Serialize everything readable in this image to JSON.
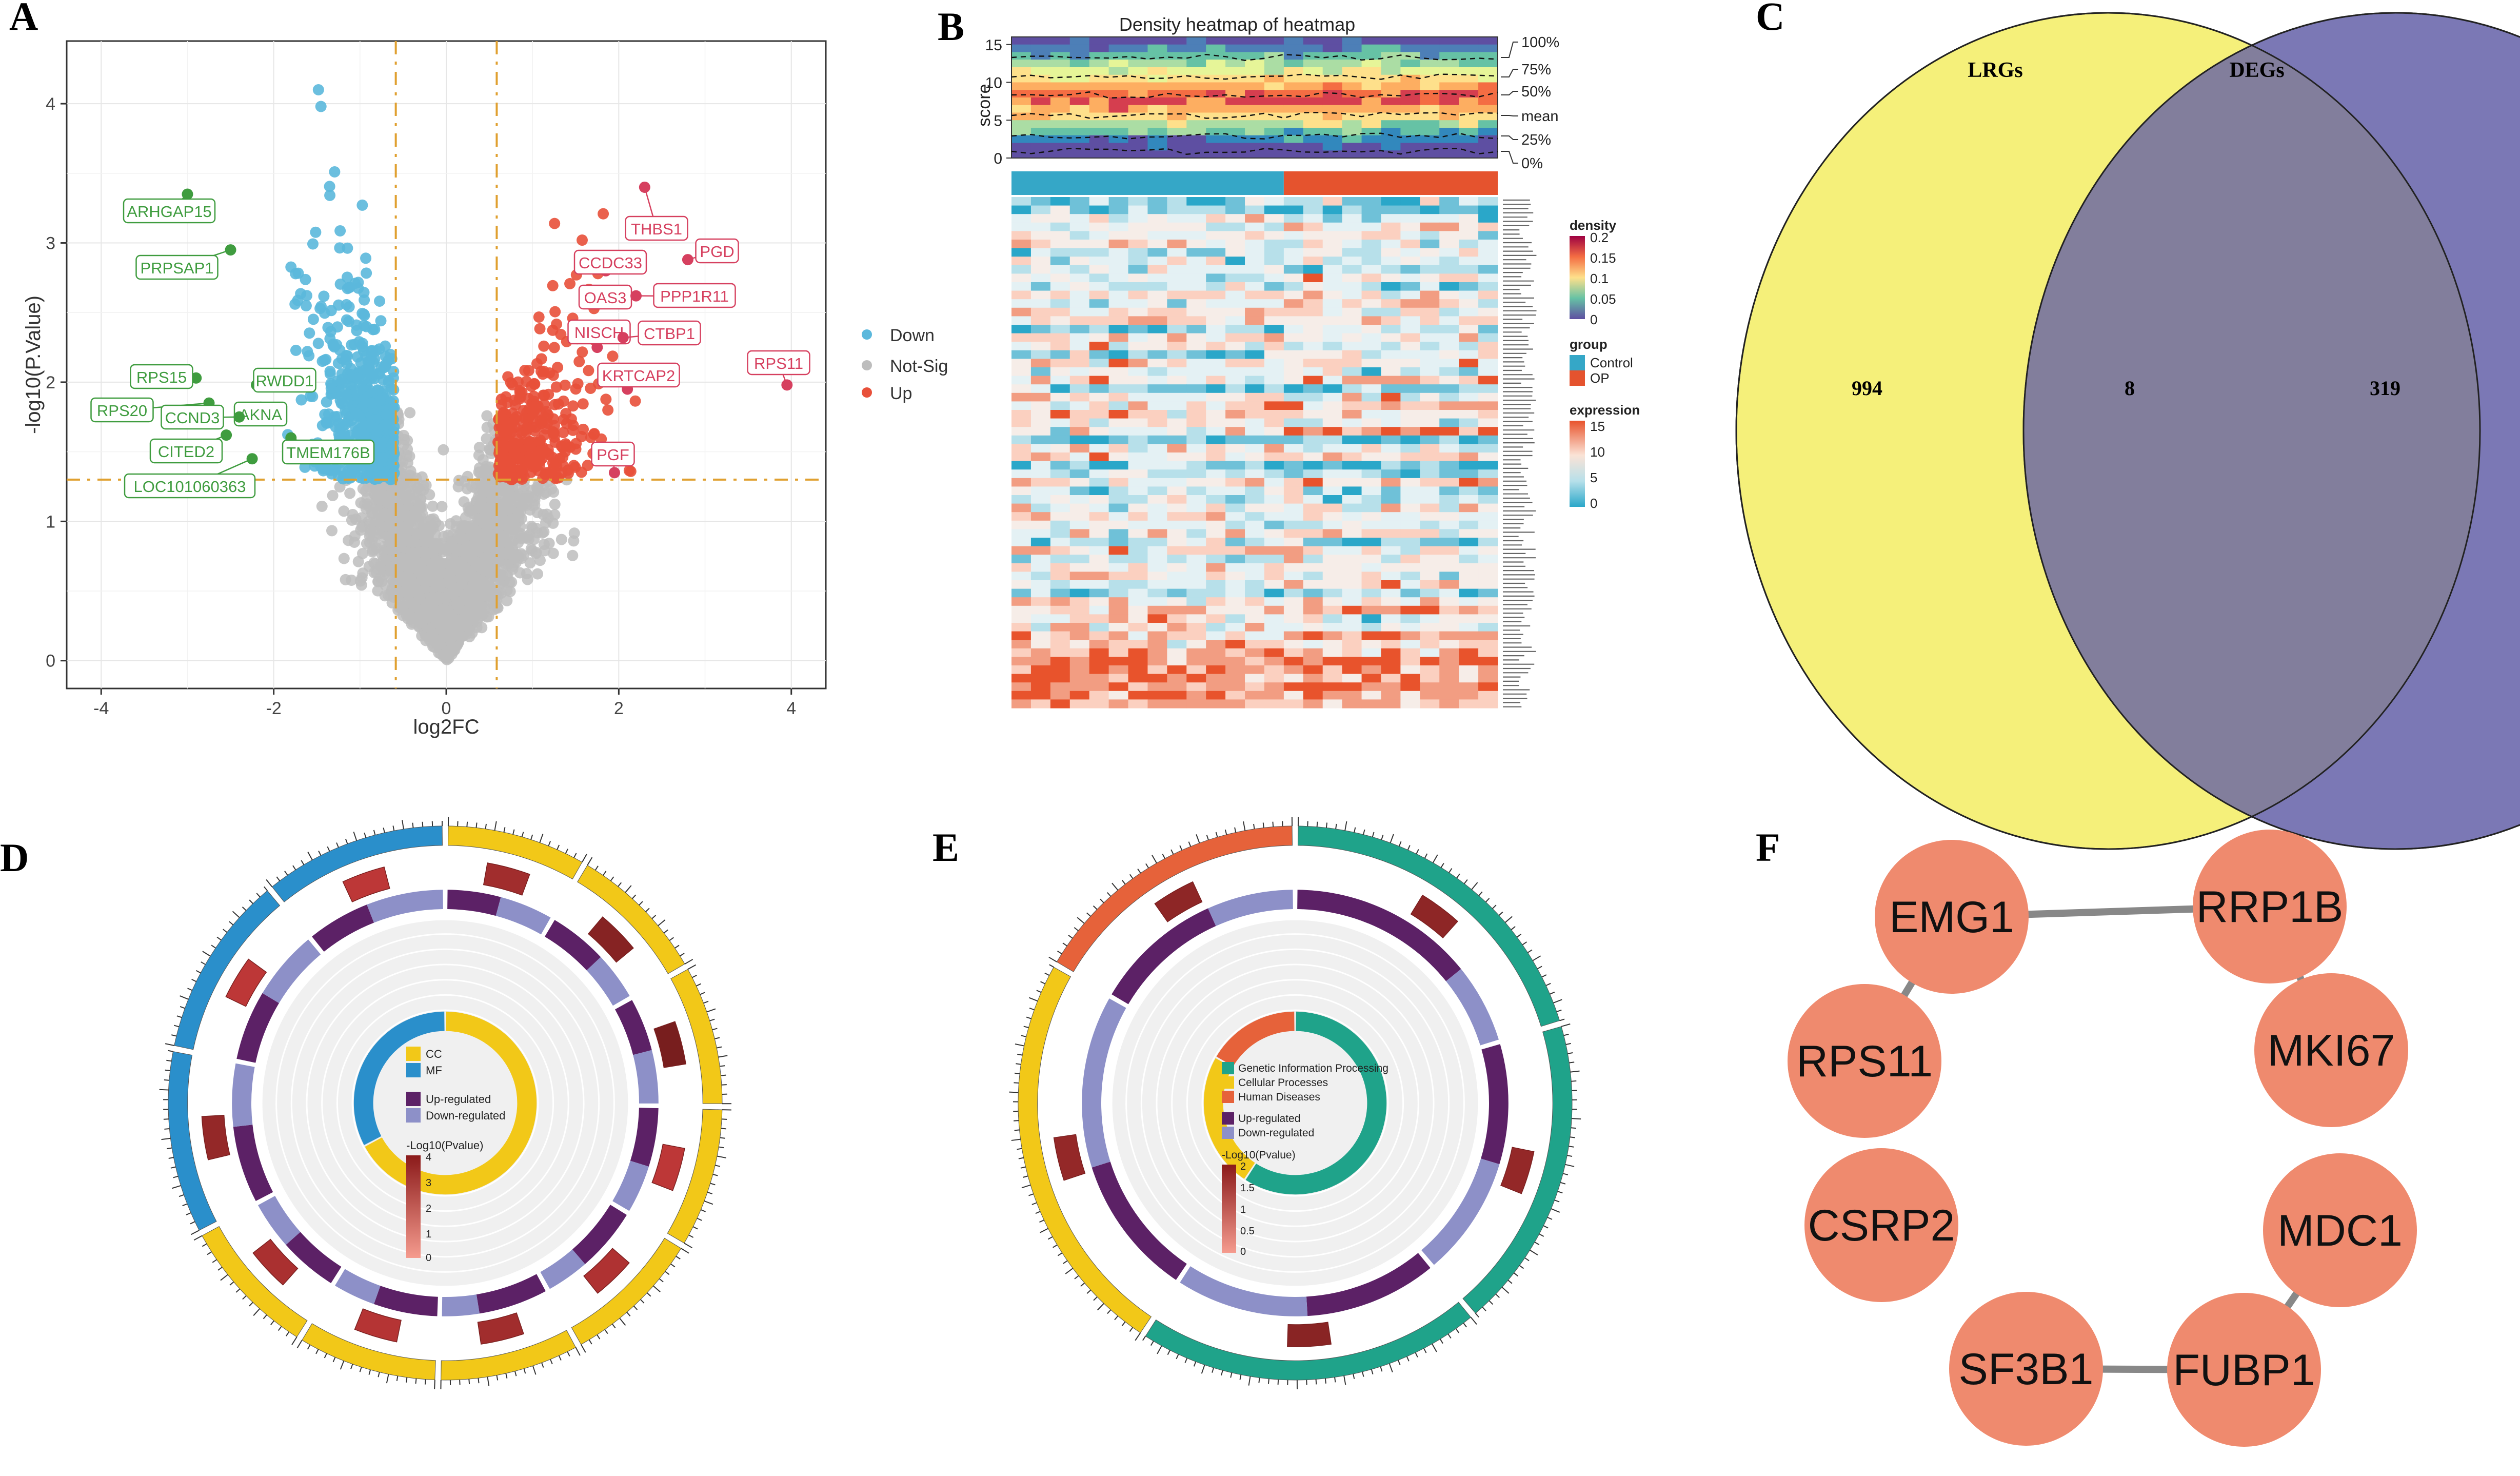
{
  "panels": {
    "A": "A",
    "B": "B",
    "C": "C",
    "D": "D",
    "E": "E",
    "F": "F"
  },
  "colors": {
    "down": "#5bb8dc",
    "notsig": "#bdbdbd",
    "up": "#e8503a",
    "threshold": "#e0a030",
    "venn_left": "#f5f07a",
    "venn_right": "#7b78b5",
    "cc": "#f2c818",
    "mf": "#2a8fcb",
    "up_reg": "#5c2166",
    "down_reg": "#8d90c8",
    "gip": "#1fa38a",
    "cp": "#f2c818",
    "hd": "#e6623a",
    "node": "#ef8a6e",
    "edge": "#888888"
  },
  "chart_data": [
    {
      "type": "scatter",
      "title": "",
      "xlabel": "log2FC",
      "ylabel": "-log10(P.Value)",
      "xlim": [
        -4.4,
        4.4
      ],
      "ylim": [
        -0.2,
        4.45
      ],
      "xticks": [
        "-4",
        "-2",
        "0",
        "2",
        "4"
      ],
      "xtick_values": [
        -4,
        -2,
        0,
        2,
        4
      ],
      "yticks": [
        "0",
        "1",
        "2",
        "3",
        "4"
      ],
      "ytick_values": [
        0,
        1,
        2,
        3,
        4
      ],
      "thresholds": {
        "x": [
          -0.585,
          0.585
        ],
        "y": 1.3
      },
      "legend": [
        "Down",
        "Not-Sig",
        "Up"
      ],
      "legend_position": "right",
      "labeled_down": [
        {
          "gene": "ARHGAP15",
          "x": -3.0,
          "y": 3.35
        },
        {
          "gene": "PRPSAP1",
          "x": -2.5,
          "y": 2.95
        },
        {
          "gene": "RPS15",
          "x": -2.9,
          "y": 2.03
        },
        {
          "gene": "RWDD1",
          "x": -2.2,
          "y": 1.98
        },
        {
          "gene": "RPS20",
          "x": -2.75,
          "y": 1.85
        },
        {
          "gene": "AKNA",
          "x": -2.15,
          "y": 1.82
        },
        {
          "gene": "CCND3",
          "x": -2.4,
          "y": 1.75
        },
        {
          "gene": "CITED2",
          "x": -2.55,
          "y": 1.62
        },
        {
          "gene": "TMEM176B",
          "x": -1.8,
          "y": 1.6
        },
        {
          "gene": "LOC101060363",
          "x": -2.25,
          "y": 1.45
        }
      ],
      "labeled_up": [
        {
          "gene": "THBS1",
          "x": 2.3,
          "y": 3.4
        },
        {
          "gene": "PGD",
          "x": 2.8,
          "y": 2.88
        },
        {
          "gene": "CCDC33",
          "x": 1.85,
          "y": 2.8
        },
        {
          "gene": "OAS3",
          "x": 1.8,
          "y": 2.6
        },
        {
          "gene": "PPP1R11",
          "x": 2.2,
          "y": 2.62
        },
        {
          "gene": "NISCH",
          "x": 1.75,
          "y": 2.25
        },
        {
          "gene": "CTBP1",
          "x": 2.05,
          "y": 2.32
        },
        {
          "gene": "RPS11",
          "x": 3.95,
          "y": 1.98
        },
        {
          "gene": "KRTCAP2",
          "x": 2.1,
          "y": 1.95
        },
        {
          "gene": "PGF",
          "x": 1.95,
          "y": 1.35
        }
      ]
    },
    {
      "type": "heatmap",
      "title": "Density heatmap of heatmap",
      "ylabel": "score",
      "yticks": [
        "0",
        "5",
        "10",
        "15"
      ],
      "ytick_values": [
        0,
        5,
        10,
        15
      ],
      "quantile_labels": [
        "100%",
        "75%",
        "50%",
        "mean",
        "25%",
        "0%"
      ],
      "legends": {
        "density": {
          "title": "density",
          "ticks": [
            "0.2",
            "0.15",
            "0.1",
            "0.05",
            "0"
          ]
        },
        "group": {
          "title": "group",
          "items": [
            "Control",
            "OP"
          ]
        },
        "expression": {
          "title": "expression",
          "ticks": [
            "15",
            "10",
            "5",
            "0"
          ]
        }
      },
      "n_samples": {
        "Control": 14,
        "OP": 11
      },
      "n_genes": 60
    },
    {
      "type": "venn",
      "sets": [
        {
          "name": "LRGs",
          "only": 994
        },
        {
          "name": "DEGs",
          "only": 319
        }
      ],
      "intersection": 8
    },
    {
      "type": "pie",
      "subtype": "circos",
      "legend": {
        "categories": [
          "CC",
          "MF"
        ],
        "regulation": [
          "Up-regulated",
          "Down-regulated"
        ],
        "scale_title": "-Log10(Pvalue)",
        "scale_ticks": [
          "4",
          "3",
          "2",
          "1",
          "0"
        ]
      },
      "sectors": [
        {
          "cat": "CC",
          "up": 0.5,
          "down": 0.5,
          "p": 2.5
        },
        {
          "cat": "CC",
          "up": 0.55,
          "down": 0.45,
          "p": 3.5
        },
        {
          "cat": "CC",
          "up": 0.5,
          "down": 0.5,
          "p": 4.0
        },
        {
          "cat": "CC",
          "up": 0.55,
          "down": 0.45,
          "p": 1.5
        },
        {
          "cat": "CC",
          "up": 0.6,
          "down": 0.4,
          "p": 2.0
        },
        {
          "cat": "CC",
          "up": 0.65,
          "down": 0.35,
          "p": 2.5
        },
        {
          "cat": "CC",
          "up": 0.6,
          "down": 0.4,
          "p": 1.8
        },
        {
          "cat": "CC",
          "up": 0.55,
          "down": 0.45,
          "p": 2.2
        },
        {
          "cat": "MF",
          "up": 0.55,
          "down": 0.45,
          "p": 3.0
        },
        {
          "cat": "MF",
          "up": 0.5,
          "down": 0.5,
          "p": 1.5
        },
        {
          "cat": "MF",
          "up": 0.45,
          "down": 0.55,
          "p": 1.5
        }
      ]
    },
    {
      "type": "pie",
      "subtype": "circos",
      "legend": {
        "categories": [
          "Genetic Information Processing",
          "Cellular Processes",
          "Human Diseases"
        ],
        "regulation": [
          "Up-regulated",
          "Down-regulated"
        ],
        "scale_title": "-Log10(Pvalue)",
        "scale_ticks": [
          "2",
          "1.5",
          "1",
          "0.5",
          "0"
        ]
      },
      "sectors": [
        {
          "cat": "Genetic Information Processing",
          "up": 0.7,
          "down": 0.3,
          "p": 1.6
        },
        {
          "cat": "Genetic Information Processing",
          "up": 0.5,
          "down": 0.5,
          "p": 1.5
        },
        {
          "cat": "Genetic Information Processing",
          "up": 0.5,
          "down": 0.5,
          "p": 1.7
        },
        {
          "cat": "Cellular Processes",
          "up": 0.45,
          "down": 0.55,
          "p": 1.5
        },
        {
          "cat": "Human Diseases",
          "up": 0.6,
          "down": 0.4,
          "p": 1.6
        }
      ]
    },
    {
      "type": "network",
      "nodes": [
        "EMG1",
        "RRP1B",
        "RPS11",
        "MKI67",
        "CSRP2",
        "MDC1",
        "SF3B1",
        "FUBP1"
      ],
      "edges": [
        [
          "EMG1",
          "RRP1B"
        ],
        [
          "EMG1",
          "RPS11"
        ],
        [
          "RRP1B",
          "MKI67"
        ],
        [
          "MDC1",
          "FUBP1"
        ],
        [
          "SF3B1",
          "FUBP1"
        ]
      ]
    }
  ]
}
